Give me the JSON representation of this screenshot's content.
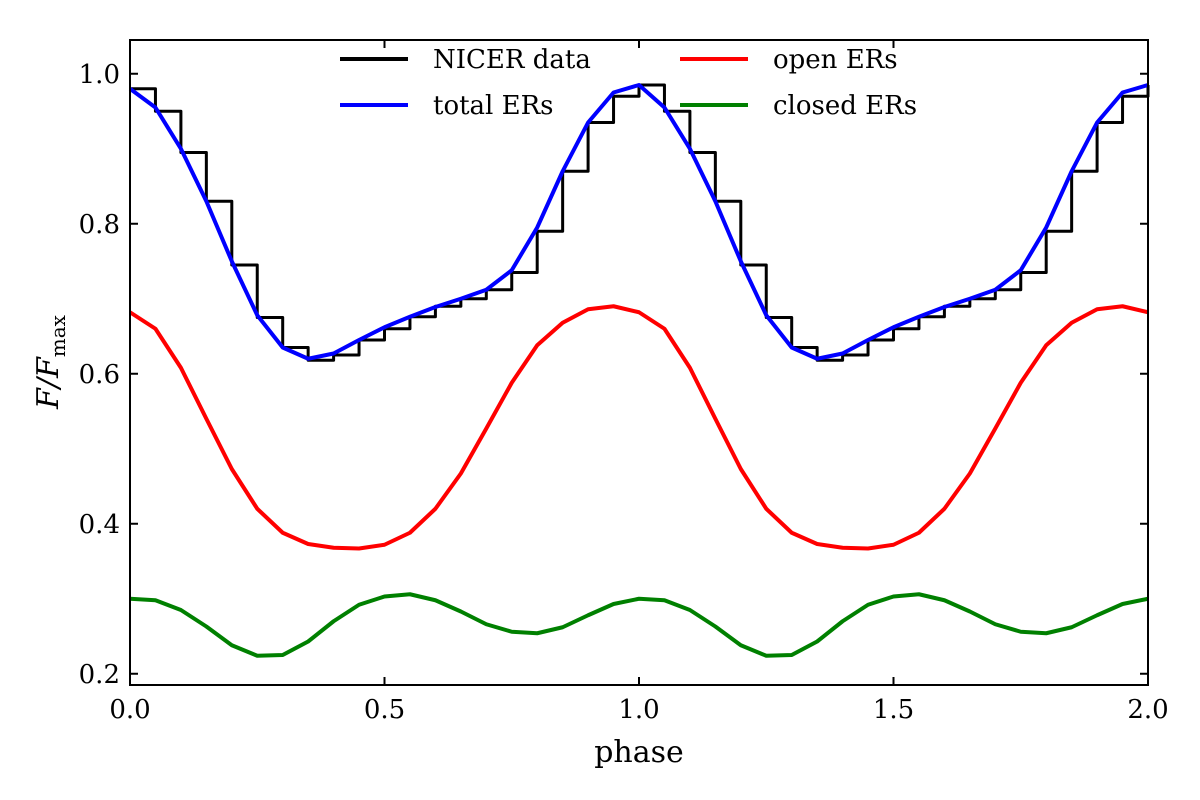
{
  "chart_data": {
    "type": "line",
    "title": "",
    "xlabel": "phase",
    "ylabel": {
      "main": "F/F",
      "subscript": "max"
    },
    "xlim": [
      0.0,
      2.0
    ],
    "ylim": [
      0.185,
      1.045
    ],
    "x_ticks": [
      0.0,
      0.5,
      1.0,
      1.5,
      2.0
    ],
    "x_tick_labels": [
      "0.0",
      "0.5",
      "1.0",
      "1.5",
      "2.0"
    ],
    "y_ticks": [
      0.2,
      0.4,
      0.6,
      0.8,
      1.0
    ],
    "y_tick_labels": [
      "0.2",
      "0.4",
      "0.6",
      "0.8",
      "1.0"
    ],
    "grid": false,
    "legend_position": "top-center",
    "series": [
      {
        "name": "NICER data",
        "color": "#000000",
        "style": "step",
        "x": [
          0.0,
          0.05,
          0.1,
          0.15,
          0.2,
          0.25,
          0.3,
          0.35,
          0.4,
          0.45,
          0.5,
          0.55,
          0.6,
          0.65,
          0.7,
          0.75,
          0.8,
          0.85,
          0.9,
          0.95,
          1.0,
          1.05,
          1.1,
          1.15,
          1.2,
          1.25,
          1.3,
          1.35,
          1.4,
          1.45,
          1.5,
          1.55,
          1.6,
          1.65,
          1.7,
          1.75,
          1.8,
          1.85,
          1.9,
          1.95,
          2.0
        ],
        "y": [
          0.98,
          0.95,
          0.895,
          0.83,
          0.745,
          0.675,
          0.635,
          0.618,
          0.625,
          0.645,
          0.66,
          0.676,
          0.69,
          0.7,
          0.712,
          0.735,
          0.79,
          0.87,
          0.935,
          0.97,
          0.985,
          0.95,
          0.895,
          0.83,
          0.745,
          0.675,
          0.635,
          0.618,
          0.625,
          0.645,
          0.66,
          0.676,
          0.69,
          0.7,
          0.712,
          0.735,
          0.79,
          0.87,
          0.935,
          0.97,
          0.985
        ]
      },
      {
        "name": "total ERs",
        "color": "#0000ff",
        "style": "line",
        "x": [
          0.0,
          0.05,
          0.1,
          0.15,
          0.2,
          0.25,
          0.3,
          0.35,
          0.4,
          0.45,
          0.5,
          0.55,
          0.6,
          0.65,
          0.7,
          0.75,
          0.8,
          0.85,
          0.9,
          0.95,
          1.0,
          1.05,
          1.1,
          1.15,
          1.2,
          1.25,
          1.3,
          1.35,
          1.4,
          1.45,
          1.5,
          1.55,
          1.6,
          1.65,
          1.7,
          1.75,
          1.8,
          1.85,
          1.9,
          1.95,
          2.0
        ],
        "y": [
          0.98,
          0.955,
          0.9,
          0.83,
          0.75,
          0.678,
          0.635,
          0.62,
          0.627,
          0.645,
          0.662,
          0.676,
          0.689,
          0.7,
          0.712,
          0.738,
          0.795,
          0.87,
          0.935,
          0.975,
          0.985,
          0.955,
          0.9,
          0.83,
          0.75,
          0.678,
          0.635,
          0.62,
          0.627,
          0.645,
          0.662,
          0.676,
          0.689,
          0.7,
          0.712,
          0.738,
          0.795,
          0.87,
          0.935,
          0.975,
          0.985
        ]
      },
      {
        "name": "open ERs",
        "color": "#ff0000",
        "style": "line",
        "x": [
          0.0,
          0.05,
          0.1,
          0.15,
          0.2,
          0.25,
          0.3,
          0.35,
          0.4,
          0.45,
          0.5,
          0.55,
          0.6,
          0.65,
          0.7,
          0.75,
          0.8,
          0.85,
          0.9,
          0.95,
          1.0,
          1.05,
          1.1,
          1.15,
          1.2,
          1.25,
          1.3,
          1.35,
          1.4,
          1.45,
          1.5,
          1.55,
          1.6,
          1.65,
          1.7,
          1.75,
          1.8,
          1.85,
          1.9,
          1.95,
          2.0
        ],
        "y": [
          0.682,
          0.66,
          0.608,
          0.54,
          0.473,
          0.42,
          0.388,
          0.373,
          0.368,
          0.367,
          0.372,
          0.388,
          0.42,
          0.467,
          0.527,
          0.588,
          0.638,
          0.668,
          0.686,
          0.69,
          0.682,
          0.66,
          0.608,
          0.54,
          0.473,
          0.42,
          0.388,
          0.373,
          0.368,
          0.367,
          0.372,
          0.388,
          0.42,
          0.467,
          0.527,
          0.588,
          0.638,
          0.668,
          0.686,
          0.69,
          0.682
        ]
      },
      {
        "name": "closed ERs",
        "color": "#008000",
        "style": "line",
        "x": [
          0.0,
          0.05,
          0.1,
          0.15,
          0.2,
          0.25,
          0.3,
          0.35,
          0.4,
          0.45,
          0.5,
          0.55,
          0.6,
          0.65,
          0.7,
          0.75,
          0.8,
          0.85,
          0.9,
          0.95,
          1.0,
          1.05,
          1.1,
          1.15,
          1.2,
          1.25,
          1.3,
          1.35,
          1.4,
          1.45,
          1.5,
          1.55,
          1.6,
          1.65,
          1.7,
          1.75,
          1.8,
          1.85,
          1.9,
          1.95,
          2.0
        ],
        "y": [
          0.3,
          0.298,
          0.285,
          0.263,
          0.238,
          0.224,
          0.225,
          0.243,
          0.27,
          0.292,
          0.303,
          0.306,
          0.298,
          0.283,
          0.266,
          0.256,
          0.254,
          0.262,
          0.278,
          0.293,
          0.3,
          0.298,
          0.285,
          0.263,
          0.238,
          0.224,
          0.225,
          0.243,
          0.27,
          0.292,
          0.303,
          0.306,
          0.298,
          0.283,
          0.266,
          0.256,
          0.254,
          0.262,
          0.278,
          0.293,
          0.3
        ]
      }
    ]
  }
}
